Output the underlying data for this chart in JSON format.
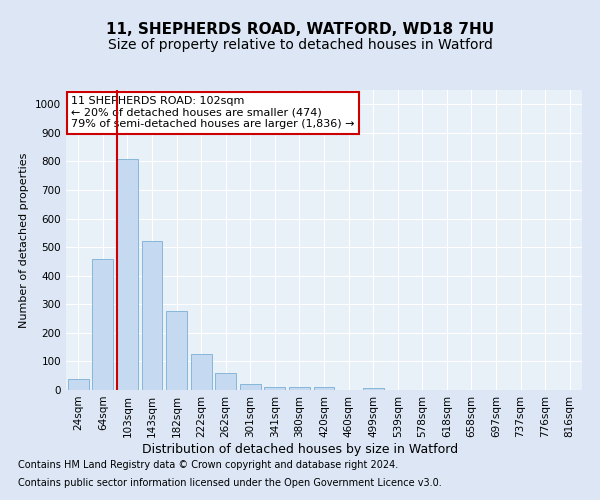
{
  "title1": "11, SHEPHERDS ROAD, WATFORD, WD18 7HU",
  "title2": "Size of property relative to detached houses in Watford",
  "xlabel": "Distribution of detached houses by size in Watford",
  "ylabel": "Number of detached properties",
  "footnote1": "Contains HM Land Registry data © Crown copyright and database right 2024.",
  "footnote2": "Contains public sector information licensed under the Open Government Licence v3.0.",
  "categories": [
    "24sqm",
    "64sqm",
    "103sqm",
    "143sqm",
    "182sqm",
    "222sqm",
    "262sqm",
    "301sqm",
    "341sqm",
    "380sqm",
    "420sqm",
    "460sqm",
    "499sqm",
    "539sqm",
    "578sqm",
    "618sqm",
    "658sqm",
    "697sqm",
    "737sqm",
    "776sqm",
    "816sqm"
  ],
  "values": [
    40,
    460,
    810,
    520,
    275,
    125,
    58,
    22,
    12,
    10,
    12,
    0,
    8,
    0,
    0,
    0,
    0,
    0,
    0,
    0,
    0
  ],
  "bar_color": "#c5d9f0",
  "bar_edge_color": "#7bafd4",
  "vline_x_idx": 2,
  "vline_color": "#cc0000",
  "annotation_text": "11 SHEPHERDS ROAD: 102sqm\n← 20% of detached houses are smaller (474)\n79% of semi-detached houses are larger (1,836) →",
  "annotation_box_facecolor": "#ffffff",
  "annotation_box_edgecolor": "#cc0000",
  "ylim": [
    0,
    1050
  ],
  "yticks": [
    0,
    100,
    200,
    300,
    400,
    500,
    600,
    700,
    800,
    900,
    1000
  ],
  "bg_color": "#dce6f5",
  "plot_bg_color": "#e8f0f8",
  "grid_color": "#ffffff",
  "title1_fontsize": 11,
  "title2_fontsize": 10,
  "xlabel_fontsize": 9,
  "ylabel_fontsize": 8,
  "tick_fontsize": 7.5,
  "annotation_fontsize": 8,
  "footnote_fontsize": 7
}
